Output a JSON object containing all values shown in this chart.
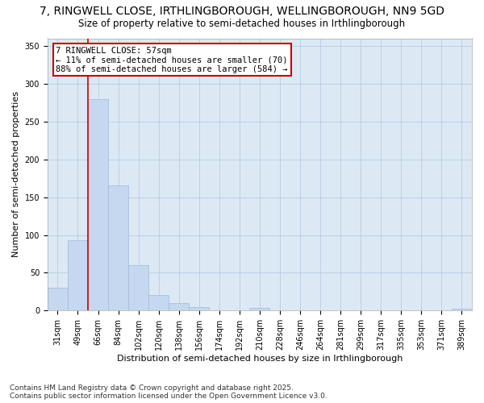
{
  "title": "7, RINGWELL CLOSE, IRTHLINGBOROUGH, WELLINGBOROUGH, NN9 5GD",
  "subtitle": "Size of property relative to semi-detached houses in Irthlingborough",
  "xlabel": "Distribution of semi-detached houses by size in Irthlingborough",
  "ylabel": "Number of semi-detached properties",
  "categories": [
    "31sqm",
    "49sqm",
    "66sqm",
    "84sqm",
    "102sqm",
    "120sqm",
    "138sqm",
    "156sqm",
    "174sqm",
    "192sqm",
    "210sqm",
    "228sqm",
    "246sqm",
    "264sqm",
    "281sqm",
    "299sqm",
    "317sqm",
    "335sqm",
    "353sqm",
    "371sqm",
    "389sqm"
  ],
  "values": [
    30,
    93,
    280,
    166,
    60,
    21,
    10,
    5,
    0,
    0,
    4,
    0,
    0,
    0,
    0,
    0,
    0,
    0,
    0,
    0,
    3
  ],
  "bar_color": "#c5d8f0",
  "bar_edge_color": "#a0b8d8",
  "annotation_title": "7 RINGWELL CLOSE: 57sqm",
  "annotation_line1": "← 11% of semi-detached houses are smaller (70)",
  "annotation_line2": "88% of semi-detached houses are larger (584) →",
  "annotation_box_color": "#ffffff",
  "annotation_box_edge": "#cc0000",
  "redline_color": "#cc0000",
  "ylim": [
    0,
    360
  ],
  "yticks": [
    0,
    50,
    100,
    150,
    200,
    250,
    300,
    350
  ],
  "footer1": "Contains HM Land Registry data © Crown copyright and database right 2025.",
  "footer2": "Contains public sector information licensed under the Open Government Licence v3.0.",
  "background_color": "#ffffff",
  "plot_bg_color": "#dce9f5",
  "grid_color": "#b8cce0",
  "title_fontsize": 10,
  "subtitle_fontsize": 8.5,
  "axis_label_fontsize": 8,
  "tick_fontsize": 7,
  "footer_fontsize": 6.5,
  "annotation_fontsize": 7.5
}
